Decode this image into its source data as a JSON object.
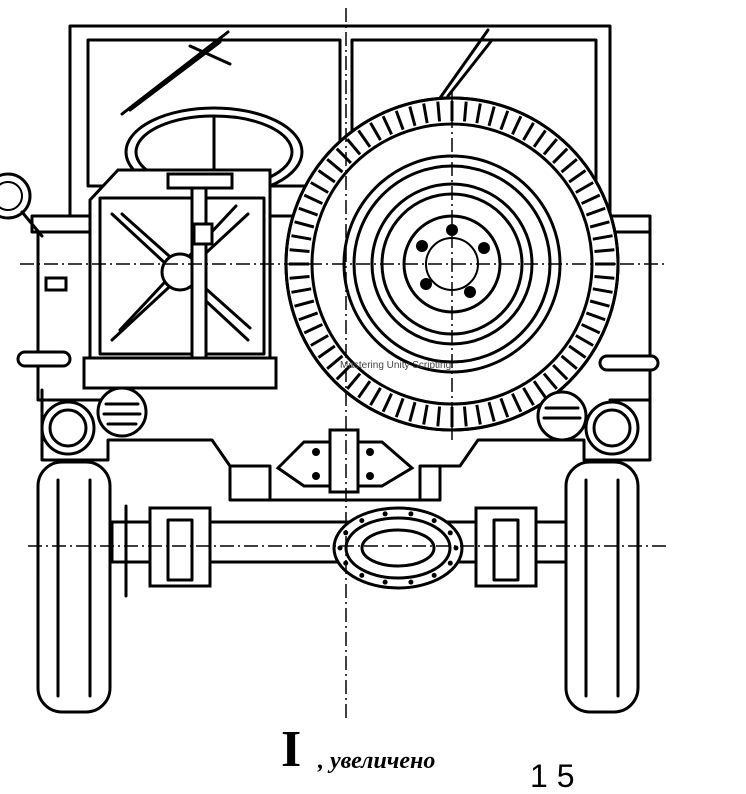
{
  "drawing": {
    "watermark": "Mastering Unity Scripting",
    "caption_numeral": "I",
    "caption_text": ", увеличено",
    "caption_fragment": "1 5"
  }
}
